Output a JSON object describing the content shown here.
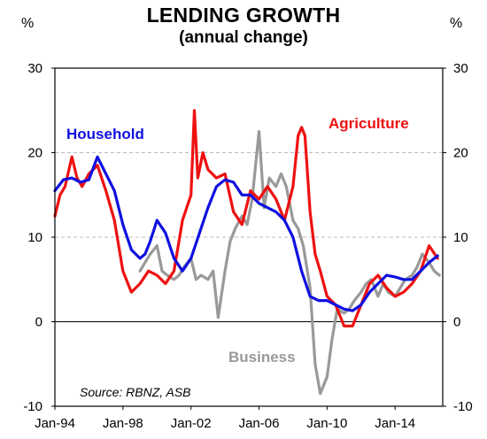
{
  "chart_data": {
    "type": "line",
    "title": "LENDING  GROWTH",
    "subtitle": "(annual change)",
    "y_unit_left": "%",
    "y_unit_right": "%",
    "ylim": [
      -10,
      30
    ],
    "y_ticks": [
      "-10",
      "0",
      "10",
      "20",
      "30"
    ],
    "y_tick_values": [
      -10,
      0,
      10,
      20,
      30
    ],
    "x_ticks": [
      "Jan-94",
      "Jan-98",
      "Jan-02",
      "Jan-06",
      "Jan-10",
      "Jan-14"
    ],
    "x_tick_values": [
      1994,
      1998,
      2002,
      2006,
      2010,
      2014
    ],
    "xlim": [
      1994,
      2016.8
    ],
    "grid": "horizontal dashed at 10 and 20",
    "source": "Source:  RBNZ, ASB",
    "series": [
      {
        "name": "Household",
        "color": "#1010e0",
        "x": [
          1994.0,
          1994.5,
          1995.0,
          1995.5,
          1996.0,
          1996.5,
          1997.0,
          1997.5,
          1998.0,
          1998.5,
          1999.0,
          1999.3,
          1999.6,
          2000.0,
          2000.5,
          2001.0,
          2001.5,
          2002.0,
          2002.5,
          2003.0,
          2003.5,
          2004.0,
          2004.5,
          2005.0,
          2005.5,
          2006.0,
          2006.5,
          2007.0,
          2007.5,
          2008.0,
          2008.5,
          2009.0,
          2009.5,
          2010.0,
          2010.5,
          2011.0,
          2011.5,
          2012.0,
          2012.5,
          2013.0,
          2013.5,
          2014.0,
          2014.5,
          2015.0,
          2015.5,
          2016.0,
          2016.5
        ],
        "y": [
          15.5,
          16.8,
          17.0,
          16.5,
          16.8,
          19.5,
          17.5,
          15.5,
          11.5,
          8.5,
          7.5,
          8.0,
          9.5,
          12.0,
          10.5,
          7.5,
          6.0,
          7.5,
          10.5,
          13.5,
          16.0,
          16.8,
          16.5,
          15.0,
          15.0,
          14.0,
          13.5,
          13.0,
          12.0,
          10.0,
          6.0,
          3.0,
          2.5,
          2.5,
          2.0,
          1.5,
          1.3,
          2.0,
          3.5,
          4.5,
          5.5,
          5.3,
          5.0,
          5.0,
          6.0,
          7.0,
          7.8
        ]
      },
      {
        "name": "Agriculture",
        "color": "#ee1111",
        "x": [
          1994.0,
          1994.3,
          1994.6,
          1995.0,
          1995.3,
          1995.6,
          1996.0,
          1996.5,
          1997.0,
          1997.5,
          1998.0,
          1998.5,
          1999.0,
          1999.5,
          2000.0,
          2000.5,
          2001.0,
          2001.5,
          2002.0,
          2002.2,
          2002.4,
          2002.7,
          2003.0,
          2003.5,
          2004.0,
          2004.5,
          2005.0,
          2005.5,
          2006.0,
          2006.5,
          2007.0,
          2007.5,
          2008.0,
          2008.3,
          2008.5,
          2008.7,
          2009.0,
          2009.3,
          2009.6,
          2010.0,
          2010.5,
          2011.0,
          2011.5,
          2012.0,
          2012.5,
          2013.0,
          2013.5,
          2014.0,
          2014.5,
          2015.0,
          2015.5,
          2016.0,
          2016.5
        ],
        "y": [
          12.5,
          15.0,
          16.0,
          19.5,
          17.0,
          16.0,
          17.5,
          18.5,
          15.5,
          12.0,
          6.0,
          3.5,
          4.5,
          6.0,
          5.5,
          4.5,
          6.0,
          12.0,
          15.0,
          25.0,
          17.0,
          20.0,
          18.0,
          17.0,
          17.5,
          13.0,
          11.5,
          15.5,
          14.5,
          16.0,
          14.5,
          12.0,
          16.0,
          22.0,
          23.0,
          22.0,
          13.0,
          8.0,
          6.0,
          3.0,
          2.0,
          -0.5,
          -0.5,
          2.0,
          4.5,
          5.5,
          4.0,
          3.0,
          3.5,
          4.5,
          6.0,
          9.0,
          7.5
        ]
      },
      {
        "name": "Business",
        "color": "#999999",
        "x": [
          1999.0,
          1999.3,
          1999.6,
          2000.0,
          2000.3,
          2000.6,
          2001.0,
          2001.3,
          2001.6,
          2002.0,
          2002.3,
          2002.6,
          2003.0,
          2003.3,
          2003.6,
          2004.0,
          2004.3,
          2004.6,
          2005.0,
          2005.3,
          2005.6,
          2006.0,
          2006.3,
          2006.6,
          2007.0,
          2007.3,
          2007.6,
          2008.0,
          2008.3,
          2008.6,
          2009.0,
          2009.3,
          2009.6,
          2010.0,
          2010.3,
          2010.6,
          2011.0,
          2011.3,
          2011.6,
          2012.0,
          2012.3,
          2012.6,
          2013.0,
          2013.3,
          2013.6,
          2014.0,
          2014.3,
          2014.6,
          2015.0,
          2015.3,
          2015.6,
          2016.0,
          2016.3,
          2016.6
        ],
        "y": [
          6.0,
          7.0,
          8.0,
          9.0,
          6.0,
          5.5,
          5.0,
          5.5,
          6.5,
          7.5,
          5.0,
          5.5,
          5.0,
          6.0,
          0.5,
          6.0,
          9.5,
          11.0,
          12.5,
          11.5,
          14.5,
          22.5,
          13.5,
          17.0,
          16.0,
          17.5,
          16.0,
          12.0,
          11.0,
          9.0,
          4.0,
          -5.0,
          -8.5,
          -6.5,
          -2.0,
          1.5,
          1.0,
          1.5,
          2.5,
          3.5,
          4.5,
          5.0,
          3.0,
          4.5,
          3.5,
          3.0,
          4.0,
          5.0,
          5.5,
          6.5,
          8.0,
          7.0,
          6.0,
          5.5
        ]
      }
    ],
    "series_labels": [
      {
        "text": "Household",
        "color": "#1010e0"
      },
      {
        "text": "Agriculture",
        "color": "#ee1111"
      },
      {
        "text": "Business",
        "color": "#999999"
      }
    ]
  }
}
